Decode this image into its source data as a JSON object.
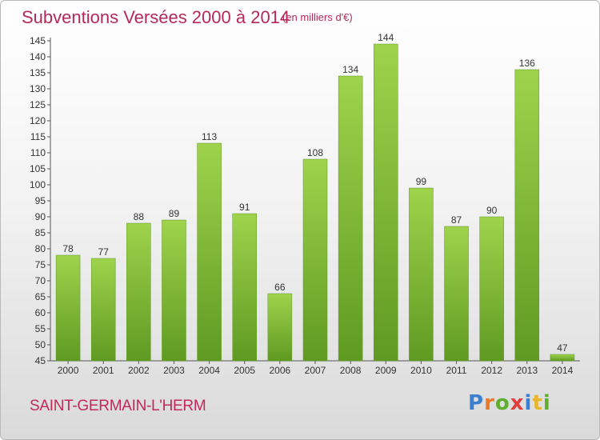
{
  "header": {
    "title": "Subventions Versées 2000 à 2014",
    "subtitle": "(en milliers d'€)"
  },
  "footer": {
    "commune": "SAINT-GERMAIN-L'HERM",
    "logo_letters": [
      "P",
      "r",
      "o",
      "x",
      "i",
      "t",
      "i"
    ],
    "logo_colors": [
      "#3b7fd0",
      "#e8792a",
      "#5fae2e",
      "#e23d3d",
      "#3b7fd0",
      "#e8b62a",
      "#5fae2e"
    ]
  },
  "chart_data": {
    "type": "bar",
    "title": "Subventions Versées 2000 à 2014",
    "subtitle": "(en milliers d'€)",
    "xlabel": "",
    "ylabel": "",
    "categories": [
      "2000",
      "2001",
      "2002",
      "2003",
      "2004",
      "2005",
      "2006",
      "2007",
      "2008",
      "2009",
      "2010",
      "2011",
      "2012",
      "2013",
      "2014"
    ],
    "values": [
      78,
      77,
      88,
      89,
      113,
      91,
      66,
      108,
      134,
      144,
      99,
      87,
      90,
      136,
      47
    ],
    "ylim": [
      45,
      145
    ],
    "yticks": [
      45,
      50,
      55,
      60,
      65,
      70,
      75,
      80,
      85,
      90,
      95,
      100,
      105,
      110,
      115,
      120,
      125,
      130,
      135,
      140,
      145
    ],
    "grid": false,
    "bar_color": "#7dbb35",
    "bar_color_light": "#9fd34c",
    "bar_color_dark": "#5f9a22"
  }
}
